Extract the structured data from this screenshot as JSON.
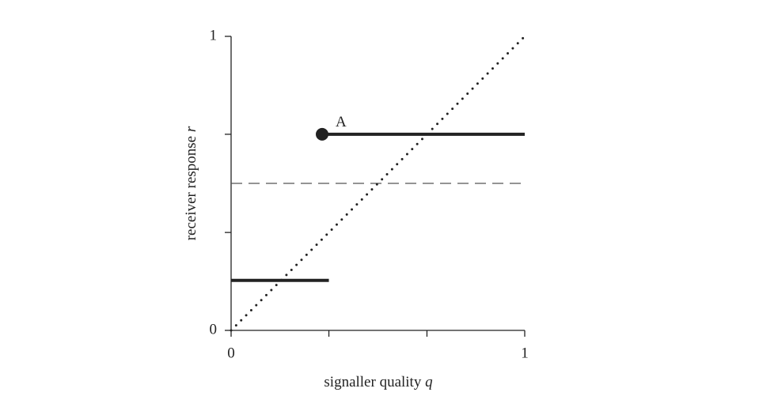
{
  "chart_data": {
    "type": "line",
    "xlabel": {
      "text": "signaller quality",
      "variable": "q"
    },
    "ylabel": {
      "text": "receiver response",
      "variable": "r"
    },
    "xlim": [
      0,
      1
    ],
    "ylim": [
      0,
      1
    ],
    "xticks": [
      0,
      {
        "value": 0.333,
        "label": null
      },
      {
        "value": 0.667,
        "label": null
      },
      1
    ],
    "yticks": [
      0,
      {
        "value": 0.333,
        "label": null
      },
      {
        "value": 0.667,
        "label": null
      },
      1
    ],
    "series": [
      {
        "color": "#222222",
        "style": "solid",
        "x": [
          0,
          0.333
        ],
        "values": [
          0.17,
          0.17
        ]
      },
      {
        "color": "#222222",
        "style": "solid",
        "x": [
          0.31,
          1
        ],
        "values": [
          0.667,
          0.667
        ]
      },
      {
        "color": "#555555",
        "style": "dashed",
        "x": [
          0,
          1
        ],
        "values": [
          0.5,
          0.5
        ]
      },
      {
        "color": "#222222",
        "style": "dotted",
        "x": [
          0,
          1
        ],
        "values": [
          0,
          1
        ]
      },
      {
        "color": "#222222",
        "style": "marker",
        "x": [
          0.31
        ],
        "values": [
          0.667
        ]
      }
    ],
    "annotations": [
      {
        "text": "A",
        "x": 0.31,
        "y": 0.667
      }
    ]
  }
}
